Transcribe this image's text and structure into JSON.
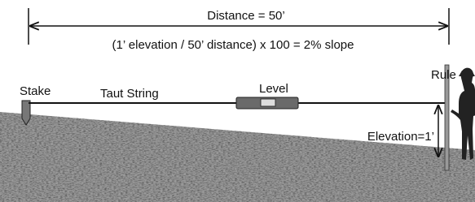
{
  "labels": {
    "distance": "Distance = 50’",
    "formula": "(1’ elevation / 50’ distance) x 100 = 2% slope",
    "rule": "Rule",
    "stake": "Stake",
    "string": "Taut String",
    "level": "Level",
    "elevation": "Elevation=1’"
  }
}
